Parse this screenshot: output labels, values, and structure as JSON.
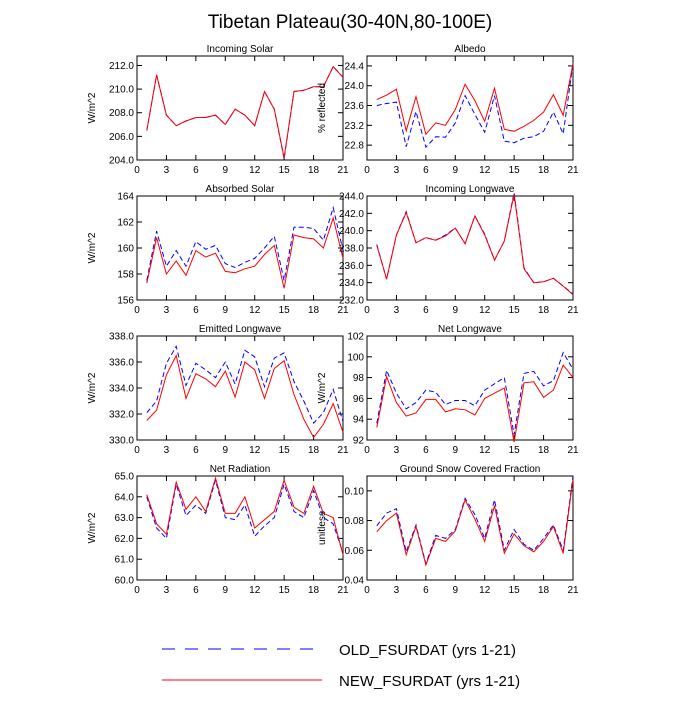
{
  "title": "Tibetan Plateau(30-40N,80-100E)",
  "colors": {
    "old": "#0000ff",
    "new": "#ff0000",
    "axis": "#000000"
  },
  "legend": {
    "old_label": "OLD_FSURDAT (yrs 1-21)",
    "new_label": "NEW_FSURDAT (yrs 1-21)"
  },
  "chart_data": [
    {
      "type": "line",
      "title": "Incoming Solar",
      "ylabel": "W/m^2",
      "xlim": [
        0,
        21
      ],
      "ylim": [
        204,
        212.8
      ],
      "xticks": [
        0,
        3,
        6,
        9,
        12,
        15,
        18,
        21
      ],
      "yticks": [
        204,
        206,
        208,
        210,
        212
      ],
      "ytick_labels": [
        "204.0",
        "206.0",
        "208.0",
        "210.0",
        "212.0"
      ],
      "x": [
        1,
        2,
        3,
        4,
        5,
        6,
        7,
        8,
        9,
        10,
        11,
        12,
        13,
        14,
        15,
        16,
        17,
        18,
        19,
        20,
        21
      ],
      "series": [
        {
          "name": "OLD_FSURDAT (yrs 1-21)",
          "style": "dashed",
          "values": [
            206.5,
            211.2,
            207.8,
            206.9,
            207.3,
            207.6,
            207.6,
            207.8,
            207.0,
            208.3,
            207.8,
            206.9,
            209.8,
            208.3,
            204.1,
            209.8,
            209.9,
            210.2,
            210.2,
            211.9,
            211.0
          ]
        },
        {
          "name": "NEW_FSURDAT (yrs 1-21)",
          "style": "solid",
          "values": [
            206.5,
            211.2,
            207.8,
            206.9,
            207.3,
            207.6,
            207.6,
            207.8,
            207.0,
            208.3,
            207.8,
            206.9,
            209.8,
            208.3,
            204.2,
            209.8,
            209.9,
            210.2,
            210.2,
            211.9,
            211.0
          ]
        }
      ]
    },
    {
      "type": "line",
      "title": "Albedo",
      "ylabel": "% reflected",
      "xlim": [
        0,
        21
      ],
      "ylim": [
        22.5,
        24.6
      ],
      "xticks": [
        0,
        3,
        6,
        9,
        12,
        15,
        18,
        21
      ],
      "yticks": [
        22.8,
        23.2,
        23.6,
        24.0,
        24.4
      ],
      "ytick_labels": [
        "22.8",
        "23.2",
        "23.6",
        "24.0",
        "24.4"
      ],
      "x": [
        1,
        2,
        3,
        4,
        5,
        6,
        7,
        8,
        9,
        10,
        11,
        12,
        13,
        14,
        15,
        16,
        17,
        18,
        19,
        20,
        21
      ],
      "series": [
        {
          "name": "OLD_FSURDAT (yrs 1-21)",
          "style": "dashed",
          "values": [
            23.6,
            23.64,
            23.67,
            22.77,
            23.48,
            22.76,
            22.97,
            22.96,
            23.25,
            23.8,
            23.42,
            23.06,
            23.8,
            22.88,
            22.85,
            22.94,
            22.97,
            23.08,
            23.47,
            23.03,
            24.45
          ]
        },
        {
          "name": "NEW_FSURDAT (yrs 1-21)",
          "style": "solid",
          "values": [
            23.72,
            23.81,
            23.93,
            23.09,
            23.78,
            23.02,
            23.25,
            23.2,
            23.52,
            24.03,
            23.7,
            23.28,
            23.95,
            23.12,
            23.08,
            23.18,
            23.3,
            23.47,
            23.82,
            23.4,
            24.45
          ]
        }
      ]
    },
    {
      "type": "line",
      "title": "Absorbed Solar",
      "ylabel": "W/m^2",
      "xlim": [
        0,
        21
      ],
      "ylim": [
        156,
        164
      ],
      "xticks": [
        0,
        3,
        6,
        9,
        12,
        15,
        18,
        21
      ],
      "yticks": [
        156,
        158,
        160,
        162,
        164
      ],
      "ytick_labels": [
        "156",
        "158",
        "160",
        "162",
        "164"
      ],
      "x": [
        1,
        2,
        3,
        4,
        5,
        6,
        7,
        8,
        9,
        10,
        11,
        12,
        13,
        14,
        15,
        16,
        17,
        18,
        19,
        20,
        21
      ],
      "series": [
        {
          "name": "OLD_FSURDAT (yrs 1-21)",
          "style": "dashed",
          "values": [
            157.5,
            161.3,
            158.6,
            159.8,
            158.6,
            160.5,
            159.9,
            160.2,
            158.8,
            158.5,
            158.9,
            159.2,
            160.0,
            160.9,
            157.5,
            161.6,
            161.6,
            161.5,
            160.6,
            163.1,
            159.8
          ]
        },
        {
          "name": "NEW_FSURDAT (yrs 1-21)",
          "style": "solid",
          "values": [
            157.3,
            160.8,
            158.0,
            159.0,
            157.9,
            159.8,
            159.3,
            159.6,
            158.2,
            158.1,
            158.4,
            158.6,
            159.5,
            160.2,
            156.9,
            161.0,
            160.8,
            160.7,
            160.0,
            162.3,
            159.2
          ]
        }
      ]
    },
    {
      "type": "line",
      "title": "Incoming Longwave",
      "ylabel": "",
      "xlim": [
        0,
        21
      ],
      "ylim": [
        232,
        244
      ],
      "xticks": [
        0,
        3,
        6,
        9,
        12,
        15,
        18,
        21
      ],
      "yticks": [
        232,
        234,
        236,
        238,
        240,
        242,
        244
      ],
      "ytick_labels": [
        "232.0",
        "234.0",
        "236.0",
        "238.0",
        "240.0",
        "242.0",
        "244.0"
      ],
      "x": [
        1,
        2,
        3,
        4,
        5,
        6,
        7,
        8,
        9,
        10,
        11,
        12,
        13,
        14,
        15,
        16,
        17,
        18,
        19,
        20,
        21
      ],
      "series": [
        {
          "name": "OLD_FSURDAT (yrs 1-21)",
          "style": "dashed",
          "values": [
            238.4,
            234.4,
            239.5,
            242.2,
            238.6,
            239.2,
            238.9,
            239.5,
            240.3,
            238.5,
            241.7,
            239.6,
            236.6,
            238.8,
            244.4,
            235.7,
            234.0,
            234.1,
            234.5,
            233.6,
            232.7
          ]
        },
        {
          "name": "NEW_FSURDAT (yrs 1-21)",
          "style": "solid",
          "values": [
            238.3,
            234.4,
            239.5,
            242.1,
            238.6,
            239.2,
            238.9,
            239.4,
            240.3,
            238.5,
            241.7,
            239.5,
            236.6,
            238.8,
            244.2,
            235.6,
            234.0,
            234.1,
            234.5,
            233.6,
            232.6
          ]
        }
      ]
    },
    {
      "type": "line",
      "title": "Emitted Longwave",
      "ylabel": "W/m^2",
      "xlim": [
        0,
        21
      ],
      "ylim": [
        330,
        338
      ],
      "xticks": [
        0,
        3,
        6,
        9,
        12,
        15,
        18,
        21
      ],
      "yticks": [
        330,
        332,
        334,
        336,
        338
      ],
      "ytick_labels": [
        "330.0",
        "332.0",
        "334.0",
        "336.0",
        "338.0"
      ],
      "x": [
        1,
        2,
        3,
        4,
        5,
        6,
        7,
        8,
        9,
        10,
        11,
        12,
        13,
        14,
        15,
        16,
        17,
        18,
        19,
        20,
        21
      ],
      "series": [
        {
          "name": "OLD_FSURDAT (yrs 1-21)",
          "style": "dashed",
          "values": [
            332.1,
            333.0,
            335.9,
            337.2,
            334.2,
            335.9,
            335.4,
            334.8,
            336.0,
            334.3,
            336.9,
            336.4,
            334.1,
            336.3,
            336.7,
            334.5,
            333.0,
            331.3,
            332.1,
            333.9,
            331.4
          ]
        },
        {
          "name": "NEW_FSURDAT (yrs 1-21)",
          "style": "solid",
          "values": [
            331.5,
            332.3,
            335.0,
            336.5,
            333.2,
            335.1,
            334.7,
            334.1,
            335.3,
            333.3,
            336.0,
            335.4,
            333.2,
            335.5,
            336.1,
            333.5,
            331.6,
            330.2,
            331.2,
            332.8,
            330.6
          ]
        }
      ]
    },
    {
      "type": "line",
      "title": "Net Longwave",
      "ylabel": "W/m^2",
      "xlim": [
        0,
        21
      ],
      "ylim": [
        92,
        102
      ],
      "xticks": [
        0,
        3,
        6,
        9,
        12,
        15,
        18,
        21
      ],
      "yticks": [
        92,
        94,
        96,
        98,
        100,
        102
      ],
      "ytick_labels": [
        "92",
        "94",
        "96",
        "98",
        "100",
        "102"
      ],
      "x": [
        1,
        2,
        3,
        4,
        5,
        6,
        7,
        8,
        9,
        10,
        11,
        12,
        13,
        14,
        15,
        16,
        17,
        18,
        19,
        20,
        21
      ],
      "series": [
        {
          "name": "OLD_FSURDAT (yrs 1-21)",
          "style": "dashed",
          "values": [
            93.6,
            98.7,
            96.5,
            95.0,
            95.6,
            96.8,
            96.6,
            95.4,
            95.8,
            95.8,
            95.3,
            96.8,
            97.4,
            98.0,
            92.5,
            98.4,
            98.6,
            97.2,
            97.7,
            100.4,
            98.8
          ]
        },
        {
          "name": "NEW_FSURDAT (yrs 1-21)",
          "style": "solid",
          "values": [
            93.2,
            98.1,
            95.6,
            94.3,
            94.6,
            95.9,
            95.9,
            94.7,
            95.0,
            94.9,
            94.4,
            96.0,
            96.5,
            97.0,
            91.8,
            97.5,
            97.6,
            96.1,
            96.8,
            99.2,
            98.0
          ]
        }
      ]
    },
    {
      "type": "line",
      "title": "Net Radiation",
      "ylabel": "W/m^2",
      "xlim": [
        0,
        21
      ],
      "ylim": [
        60,
        65
      ],
      "xticks": [
        0,
        3,
        6,
        9,
        12,
        15,
        18,
        21
      ],
      "yticks": [
        60,
        61,
        62,
        63,
        64,
        65
      ],
      "ytick_labels": [
        "60.0",
        "61.0",
        "62.0",
        "63.0",
        "64.0",
        "65.0"
      ],
      "x": [
        1,
        2,
        3,
        4,
        5,
        6,
        7,
        8,
        9,
        10,
        11,
        12,
        13,
        14,
        15,
        16,
        17,
        18,
        19,
        20,
        21
      ],
      "series": [
        {
          "name": "OLD_FSURDAT (yrs 1-21)",
          "style": "dashed",
          "values": [
            64.0,
            62.5,
            62.0,
            64.6,
            63.1,
            63.6,
            63.2,
            64.8,
            63.0,
            62.9,
            63.6,
            62.1,
            62.6,
            63.0,
            64.6,
            63.3,
            63.0,
            64.3,
            63.0,
            62.7,
            61.3
          ]
        },
        {
          "name": "NEW_FSURDAT (yrs 1-21)",
          "style": "solid",
          "values": [
            64.1,
            62.7,
            62.2,
            64.7,
            63.4,
            64.0,
            63.3,
            64.9,
            63.2,
            63.2,
            64.0,
            62.5,
            62.9,
            63.3,
            64.8,
            63.5,
            63.2,
            64.5,
            63.2,
            63.0,
            61.2
          ]
        }
      ]
    },
    {
      "type": "line",
      "title": "Ground Snow Covered Fraction",
      "ylabel": "unitless",
      "xlim": [
        0,
        21
      ],
      "ylim": [
        0.04,
        0.11
      ],
      "xticks": [
        0,
        3,
        6,
        9,
        12,
        15,
        18,
        21
      ],
      "yticks": [
        0.04,
        0.06,
        0.08,
        0.1
      ],
      "ytick_labels": [
        "0.04",
        "0.06",
        "0.08",
        "0.10"
      ],
      "x": [
        1,
        2,
        3,
        4,
        5,
        6,
        7,
        8,
        9,
        10,
        11,
        12,
        13,
        14,
        15,
        16,
        17,
        18,
        19,
        20,
        21
      ],
      "series": [
        {
          "name": "OLD_FSURDAT (yrs 1-21)",
          "style": "dashed",
          "values": [
            0.0765,
            0.085,
            0.088,
            0.059,
            0.077,
            0.051,
            0.07,
            0.068,
            0.074,
            0.095,
            0.084,
            0.068,
            0.094,
            0.06,
            0.074,
            0.064,
            0.06,
            0.068,
            0.077,
            0.06,
            0.11
          ]
        },
        {
          "name": "NEW_FSURDAT (yrs 1-21)",
          "style": "solid",
          "values": [
            0.0725,
            0.08,
            0.085,
            0.057,
            0.076,
            0.05,
            0.068,
            0.066,
            0.073,
            0.094,
            0.081,
            0.066,
            0.09,
            0.058,
            0.071,
            0.063,
            0.059,
            0.066,
            0.076,
            0.058,
            0.108
          ]
        }
      ]
    }
  ]
}
